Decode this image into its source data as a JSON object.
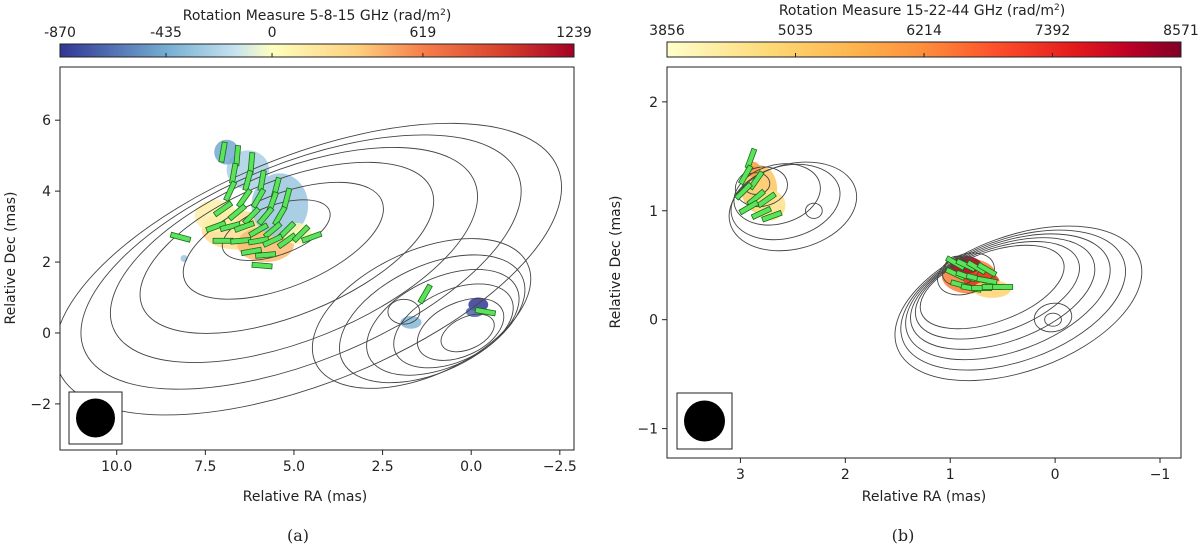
{
  "figure": {
    "panel_a_caption": "(a)",
    "panel_b_caption": "(b)"
  },
  "chart_data": [
    {
      "type": "heatmap",
      "panel": "a",
      "title": "Rotation Measure 5-8-15 GHz (rad/m²)",
      "title_main": "Rotation Measure 5-8-15 GHz (rad/m",
      "title_sup": "2",
      "title_close": ")",
      "colorbar": {
        "range": [
          -870,
          1239
        ],
        "ticks": [
          -870,
          -435,
          0,
          619,
          1239
        ],
        "tick_labels": [
          "-870",
          "-435",
          "0",
          "619",
          "1239"
        ],
        "colormap": "RdYlBu_r",
        "stops": [
          {
            "value": -870,
            "color": "#313695"
          },
          {
            "value": -435,
            "color": "#74add1"
          },
          {
            "value": -150,
            "color": "#c6e3ef"
          },
          {
            "value": 0,
            "color": "#ffffbf"
          },
          {
            "value": 350,
            "color": "#fdd07e"
          },
          {
            "value": 619,
            "color": "#f67f4b"
          },
          {
            "value": 950,
            "color": "#d6402c"
          },
          {
            "value": 1239,
            "color": "#a50026"
          }
        ]
      },
      "xlabel": "Relative RA (mas)",
      "ylabel": "Relative Dec (mas)",
      "xlim": [
        11.6,
        -2.9
      ],
      "ylim": [
        -3.3,
        7.5
      ],
      "xticks": [
        10.0,
        7.5,
        5.0,
        2.5,
        0.0,
        -2.5
      ],
      "xtick_labels": [
        "10.0",
        "7.5",
        "5.0",
        "2.5",
        "0.0",
        "−2.5"
      ],
      "yticks": [
        -2,
        0,
        2,
        4,
        6
      ],
      "ytick_labels": [
        "−2",
        "0",
        "2",
        "4",
        "6"
      ],
      "beam": {
        "x": 10.5,
        "y": -2.3,
        "radius_mas": 0.55
      },
      "contours": [
        {
          "cx": 0.1,
          "cy": 0.0,
          "rx": 0.8,
          "ry": 0.45,
          "angle": -25
        },
        {
          "cx": 0.3,
          "cy": 0.1,
          "rx": 1.3,
          "ry": 0.75,
          "angle": -25
        },
        {
          "cx": 0.5,
          "cy": 0.2,
          "rx": 1.8,
          "ry": 1.0,
          "angle": -25
        },
        {
          "cx": 0.8,
          "cy": 0.3,
          "rx": 2.3,
          "ry": 1.25,
          "angle": -25
        },
        {
          "cx": 1.1,
          "cy": 0.4,
          "rx": 2.8,
          "ry": 1.5,
          "angle": -25
        },
        {
          "cx": 1.4,
          "cy": 0.55,
          "rx": 3.3,
          "ry": 1.75,
          "angle": -25
        },
        {
          "cx": 1.9,
          "cy": 0.6,
          "rx": 0.45,
          "ry": 0.35,
          "angle": 0
        },
        {
          "cx": 5.5,
          "cy": 2.9,
          "rx": 1.6,
          "ry": 0.7,
          "angle": -20
        },
        {
          "cx": 5.3,
          "cy": 2.6,
          "rx": 3.0,
          "ry": 1.3,
          "angle": -22
        },
        {
          "cx": 5.2,
          "cy": 2.4,
          "rx": 4.4,
          "ry": 1.9,
          "angle": -22
        },
        {
          "cx": 5.0,
          "cy": 2.2,
          "rx": 5.5,
          "ry": 2.4,
          "angle": -22
        },
        {
          "cx": 4.8,
          "cy": 2.0,
          "rx": 6.6,
          "ry": 2.8,
          "angle": -22
        },
        {
          "cx": 4.6,
          "cy": 1.8,
          "rx": 7.6,
          "ry": 3.2,
          "angle": -22
        }
      ],
      "rm_patches": [
        {
          "x": 6.6,
          "y": 2.9,
          "rx": 1.0,
          "ry": 0.55,
          "value": 250
        },
        {
          "x": 5.8,
          "y": 2.5,
          "rx": 0.8,
          "ry": 0.5,
          "value": 420
        },
        {
          "x": 7.2,
          "y": 3.3,
          "rx": 0.6,
          "ry": 0.45,
          "value": 120
        },
        {
          "x": 5.4,
          "y": 3.6,
          "rx": 0.8,
          "ry": 0.9,
          "value": -300
        },
        {
          "x": 6.3,
          "y": 4.6,
          "rx": 0.6,
          "ry": 0.55,
          "value": -250
        },
        {
          "x": 6.9,
          "y": 5.1,
          "rx": 0.35,
          "ry": 0.35,
          "value": -450
        },
        {
          "x": 4.9,
          "y": 2.8,
          "rx": 0.4,
          "ry": 0.3,
          "value": 80
        },
        {
          "x": 8.1,
          "y": 2.1,
          "rx": 0.1,
          "ry": 0.1,
          "value": -300
        },
        {
          "x": 1.7,
          "y": 0.3,
          "rx": 0.3,
          "ry": 0.18,
          "value": -380
        },
        {
          "x": -0.2,
          "y": 0.8,
          "rx": 0.28,
          "ry": 0.2,
          "value": -870
        },
        {
          "x": -0.1,
          "y": 0.6,
          "rx": 0.25,
          "ry": 0.15,
          "value": -700
        }
      ],
      "evpa": [
        {
          "x": 7.0,
          "y": 5.1,
          "angle": 80
        },
        {
          "x": 6.6,
          "y": 5.0,
          "angle": 85
        },
        {
          "x": 6.2,
          "y": 4.8,
          "angle": 85
        },
        {
          "x": 6.7,
          "y": 4.5,
          "angle": 80
        },
        {
          "x": 6.3,
          "y": 4.3,
          "angle": 75
        },
        {
          "x": 5.9,
          "y": 4.3,
          "angle": 80
        },
        {
          "x": 5.5,
          "y": 4.1,
          "angle": 75
        },
        {
          "x": 6.8,
          "y": 4.0,
          "angle": 65
        },
        {
          "x": 6.4,
          "y": 3.8,
          "angle": 55
        },
        {
          "x": 6.0,
          "y": 3.8,
          "angle": 60
        },
        {
          "x": 5.6,
          "y": 3.7,
          "angle": 70
        },
        {
          "x": 5.2,
          "y": 3.8,
          "angle": 75
        },
        {
          "x": 7.0,
          "y": 3.5,
          "angle": 35
        },
        {
          "x": 6.6,
          "y": 3.4,
          "angle": 40
        },
        {
          "x": 6.2,
          "y": 3.3,
          "angle": 45
        },
        {
          "x": 5.8,
          "y": 3.3,
          "angle": 50
        },
        {
          "x": 5.4,
          "y": 3.3,
          "angle": 60
        },
        {
          "x": 7.2,
          "y": 3.0,
          "angle": 20
        },
        {
          "x": 6.8,
          "y": 3.0,
          "angle": 15
        },
        {
          "x": 6.4,
          "y": 3.0,
          "angle": 20
        },
        {
          "x": 6.0,
          "y": 2.9,
          "angle": 30
        },
        {
          "x": 5.6,
          "y": 2.9,
          "angle": 40
        },
        {
          "x": 5.2,
          "y": 2.9,
          "angle": 45
        },
        {
          "x": 7.0,
          "y": 2.6,
          "angle": 0
        },
        {
          "x": 6.5,
          "y": 2.6,
          "angle": 5
        },
        {
          "x": 6.0,
          "y": 2.6,
          "angle": 10
        },
        {
          "x": 5.6,
          "y": 2.6,
          "angle": 25
        },
        {
          "x": 5.2,
          "y": 2.6,
          "angle": 35
        },
        {
          "x": 4.8,
          "y": 2.8,
          "angle": 45
        },
        {
          "x": 6.2,
          "y": 2.3,
          "angle": 10
        },
        {
          "x": 5.8,
          "y": 2.2,
          "angle": 5
        },
        {
          "x": 5.9,
          "y": 1.9,
          "angle": -5
        },
        {
          "x": 8.2,
          "y": 2.7,
          "angle": -15
        },
        {
          "x": 4.5,
          "y": 2.7,
          "angle": 20
        },
        {
          "x": 1.3,
          "y": 1.1,
          "angle": 60
        },
        {
          "x": -0.4,
          "y": 0.6,
          "angle": -10
        }
      ]
    },
    {
      "type": "heatmap",
      "panel": "b",
      "title": "Rotation Measure 15-22-44 GHz (rad/m²)",
      "title_main": "Rotation Measure 15-22-44 GHz (rad/m",
      "title_sup": "2",
      "title_close": ")",
      "colorbar": {
        "range": [
          3856,
          8571
        ],
        "ticks": [
          3856,
          5035,
          6214,
          7392,
          8571
        ],
        "tick_labels": [
          "3856",
          "5035",
          "6214",
          "7392",
          "8571"
        ],
        "colormap": "YlOrRd",
        "stops": [
          {
            "value": 3856,
            "color": "#ffffcc"
          },
          {
            "value": 4800,
            "color": "#fed976"
          },
          {
            "value": 5600,
            "color": "#feb24c"
          },
          {
            "value": 6214,
            "color": "#fd8d3c"
          },
          {
            "value": 6900,
            "color": "#fc4e2a"
          },
          {
            "value": 7600,
            "color": "#e31a1c"
          },
          {
            "value": 8100,
            "color": "#bd0026"
          },
          {
            "value": 8571,
            "color": "#800026"
          }
        ]
      },
      "xlabel": "Relative RA (mas)",
      "ylabel": "Relative Dec (mas)",
      "xlim": [
        3.7,
        -1.2
      ],
      "ylim": [
        -1.27,
        2.32
      ],
      "xticks": [
        3,
        2,
        1,
        0,
        -1
      ],
      "xtick_labels": [
        "3",
        "2",
        "1",
        "0",
        "−1"
      ],
      "yticks": [
        -1,
        0,
        1,
        2
      ],
      "ytick_labels": [
        "−1",
        "0",
        "1",
        "2"
      ],
      "beam": {
        "x": 3.3,
        "y": -0.95,
        "radius_mas": 0.19
      },
      "contours": [
        {
          "cx": 2.85,
          "cy": 1.25,
          "rx": 0.13,
          "ry": 0.1,
          "angle": 0
        },
        {
          "cx": 2.8,
          "cy": 1.22,
          "rx": 0.25,
          "ry": 0.18,
          "angle": -10
        },
        {
          "cx": 2.65,
          "cy": 1.15,
          "rx": 0.42,
          "ry": 0.27,
          "angle": -15
        },
        {
          "cx": 2.57,
          "cy": 1.08,
          "rx": 0.53,
          "ry": 0.33,
          "angle": -15
        },
        {
          "cx": 2.5,
          "cy": 1.04,
          "rx": 0.62,
          "ry": 0.39,
          "angle": -15
        },
        {
          "cx": 2.3,
          "cy": 1.0,
          "rx": 0.08,
          "ry": 0.07,
          "angle": 0
        },
        {
          "cx": 0.95,
          "cy": 0.5,
          "rx": 0.1,
          "ry": 0.08,
          "angle": -20
        },
        {
          "cx": 0.9,
          "cy": 0.45,
          "rx": 0.18,
          "ry": 0.13,
          "angle": -20
        },
        {
          "cx": 0.85,
          "cy": 0.42,
          "rx": 0.28,
          "ry": 0.18,
          "angle": -20
        },
        {
          "cx": 0.02,
          "cy": 0.0,
          "rx": 0.08,
          "ry": 0.06,
          "angle": 0
        },
        {
          "cx": 0.02,
          "cy": 0.02,
          "rx": 0.18,
          "ry": 0.13,
          "angle": -10
        },
        {
          "cx": 0.6,
          "cy": 0.3,
          "rx": 0.72,
          "ry": 0.32,
          "angle": -20
        },
        {
          "cx": 0.55,
          "cy": 0.27,
          "rx": 0.82,
          "ry": 0.38,
          "angle": -20
        },
        {
          "cx": 0.5,
          "cy": 0.24,
          "rx": 0.92,
          "ry": 0.44,
          "angle": -20
        },
        {
          "cx": 0.45,
          "cy": 0.21,
          "rx": 1.02,
          "ry": 0.5,
          "angle": -20
        },
        {
          "cx": 0.4,
          "cy": 0.18,
          "rx": 1.12,
          "ry": 0.56,
          "angle": -20
        },
        {
          "cx": 0.35,
          "cy": 0.15,
          "rx": 1.23,
          "ry": 0.62,
          "angle": -20
        }
      ],
      "rm_patches": [
        {
          "x": 2.82,
          "y": 1.2,
          "rx": 0.17,
          "ry": 0.22,
          "value": 5200
        },
        {
          "x": 2.72,
          "y": 1.05,
          "rx": 0.15,
          "ry": 0.14,
          "value": 4600
        },
        {
          "x": 2.88,
          "y": 1.38,
          "rx": 0.07,
          "ry": 0.07,
          "value": 6000
        },
        {
          "x": 0.82,
          "y": 0.4,
          "rx": 0.26,
          "ry": 0.16,
          "value": 6400
        },
        {
          "x": 0.85,
          "y": 0.5,
          "rx": 0.15,
          "ry": 0.08,
          "value": 8200
        },
        {
          "x": 0.7,
          "y": 0.35,
          "rx": 0.17,
          "ry": 0.09,
          "value": 7300
        },
        {
          "x": 0.6,
          "y": 0.28,
          "rx": 0.18,
          "ry": 0.08,
          "value": 4900
        }
      ],
      "evpa": [
        {
          "x": 2.9,
          "y": 1.48,
          "angle": 70
        },
        {
          "x": 2.95,
          "y": 1.33,
          "angle": 60
        },
        {
          "x": 2.85,
          "y": 1.28,
          "angle": 55
        },
        {
          "x": 2.97,
          "y": 1.18,
          "angle": 45
        },
        {
          "x": 2.85,
          "y": 1.12,
          "angle": 40
        },
        {
          "x": 2.75,
          "y": 1.1,
          "angle": 35
        },
        {
          "x": 2.92,
          "y": 1.03,
          "angle": 30
        },
        {
          "x": 2.8,
          "y": 0.98,
          "angle": 25
        },
        {
          "x": 2.7,
          "y": 0.95,
          "angle": 20
        },
        {
          "x": 0.95,
          "y": 0.52,
          "angle": -30
        },
        {
          "x": 0.85,
          "y": 0.5,
          "angle": -25
        },
        {
          "x": 0.75,
          "y": 0.48,
          "angle": -30
        },
        {
          "x": 0.65,
          "y": 0.46,
          "angle": -30
        },
        {
          "x": 0.95,
          "y": 0.42,
          "angle": -25
        },
        {
          "x": 0.85,
          "y": 0.4,
          "angle": -20
        },
        {
          "x": 0.75,
          "y": 0.38,
          "angle": -15
        },
        {
          "x": 0.65,
          "y": 0.36,
          "angle": -10
        },
        {
          "x": 0.9,
          "y": 0.32,
          "angle": -15
        },
        {
          "x": 0.8,
          "y": 0.29,
          "angle": -10
        },
        {
          "x": 0.7,
          "y": 0.29,
          "angle": 0
        },
        {
          "x": 0.6,
          "y": 0.3,
          "angle": 0
        },
        {
          "x": 0.5,
          "y": 0.3,
          "angle": 0
        }
      ]
    }
  ]
}
